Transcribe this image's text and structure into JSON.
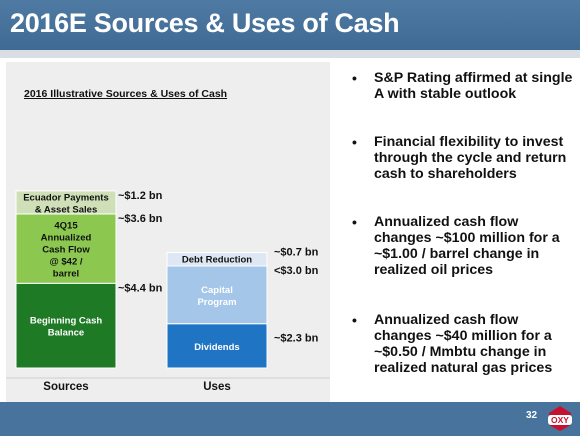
{
  "header": {
    "title": "2016E Sources & Uses of Cash"
  },
  "colors": {
    "header_bg": "#4a759f",
    "footer_bg": "#48739d",
    "ecuador": "#cfe0b8",
    "cash_flow": "#8cc850",
    "beginning_cash": "#1f7a26",
    "debt_reduction": "#dde8f4",
    "capital_program": "#a4c6e8",
    "dividends": "#1f74c4",
    "logo_red": "#c8102e"
  },
  "chart_data": {
    "type": "bar",
    "stacked": true,
    "title": "2016 Illustrative Sources & Uses of Cash",
    "categories": [
      "Sources",
      "Uses"
    ],
    "unit": "bn",
    "stacks": [
      {
        "category": "Sources",
        "segments": [
          {
            "label": "Beginning Cash Balance",
            "value": 4.4,
            "value_label": "~$4.4 bn",
            "color": "#1f7a26",
            "text_color": "#ffffff"
          },
          {
            "label": "4Q15 Annualized Cash Flow @ $42 / barrel",
            "value": 3.6,
            "value_label": "~$3.6 bn",
            "color": "#8cc850",
            "text_color": "#111111"
          },
          {
            "label": "Ecuador Payments & Asset Sales",
            "value": 1.2,
            "value_label": "~$1.2 bn",
            "color": "#cfe0b8",
            "text_color": "#111111"
          }
        ]
      },
      {
        "category": "Uses",
        "segments": [
          {
            "label": "Dividends",
            "value": 2.3,
            "value_label": "~$2.3 bn",
            "color": "#1f74c4",
            "text_color": "#ffffff"
          },
          {
            "label": "Capital Program",
            "value": 3.0,
            "value_label": "<$3.0 bn",
            "color": "#a4c6e8",
            "text_color": "#ffffff"
          },
          {
            "label": "Debt Reduction",
            "value": 0.7,
            "value_label": "~$0.7 bn",
            "color": "#dde8f4",
            "text_color": "#111111"
          }
        ]
      }
    ],
    "grid": false,
    "legend": "none"
  },
  "bullets": [
    {
      "text": "S&P Rating affirmed at single A with stable outlook"
    },
    {
      "text": "Financial flexibility to invest through the cycle and return cash to shareholders"
    },
    {
      "text": "Annualized cash flow changes ~$100 million for a ~$1.00 / barrel change in realized oil prices"
    },
    {
      "text": " Annualized cash flow changes ~$40 million for a ~$0.50 / Mmbtu change in realized natural gas prices"
    }
  ],
  "footer": {
    "page_number": "32",
    "logo_text": "OXY"
  }
}
